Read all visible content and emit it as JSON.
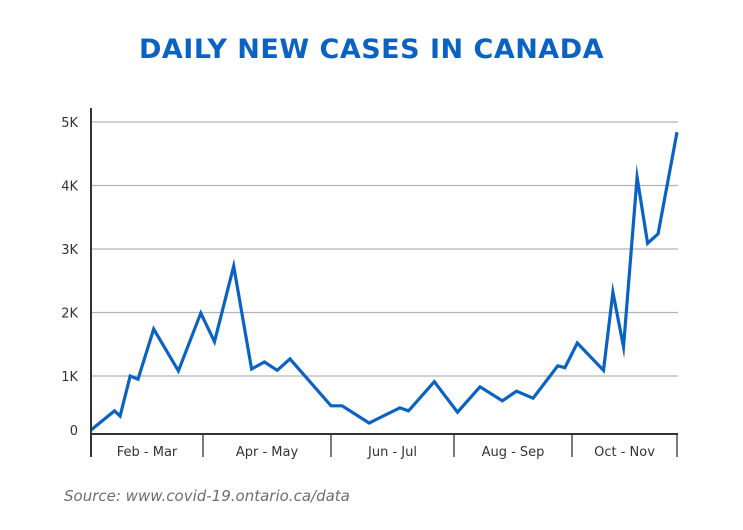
{
  "chart_data": {
    "type": "line",
    "title": "DAILY NEW CASES IN CANADA",
    "xlabel": "",
    "ylabel": "",
    "ylim": [
      0,
      5000
    ],
    "xlim": [
      0,
      5
    ],
    "grid": true,
    "legend": "none",
    "yticks": [
      {
        "value": 0,
        "label": "0"
      },
      {
        "value": 1000,
        "label": "1K"
      },
      {
        "value": 2000,
        "label": "2K"
      },
      {
        "value": 3000,
        "label": "3K"
      },
      {
        "value": 4000,
        "label": "4K"
      },
      {
        "value": 5000,
        "label": "5K"
      }
    ],
    "categories": [
      "Feb - Mar",
      "Apr - May",
      "Jun - Jul",
      "Aug - Sep",
      "Oct - Nov"
    ],
    "series": [
      {
        "name": "Daily new cases",
        "color": "#0a63c2",
        "x": [
          0.0,
          0.21,
          0.26,
          0.35,
          0.42,
          0.56,
          0.78,
          0.98,
          1.09,
          1.24,
          1.38,
          1.48,
          1.58,
          1.68,
          2.0,
          2.09,
          2.31,
          2.56,
          2.63,
          2.84,
          3.03,
          3.22,
          3.41,
          3.53,
          3.67,
          3.88,
          3.94,
          4.05,
          4.3,
          4.39,
          4.49,
          4.62,
          4.72,
          4.82,
          5.0
        ],
        "values": [
          150,
          450,
          370,
          1000,
          950,
          1740,
          1080,
          1990,
          1540,
          2730,
          1110,
          1220,
          1090,
          1270,
          530,
          530,
          260,
          500,
          450,
          910,
          430,
          830,
          610,
          760,
          650,
          1160,
          1130,
          1520,
          1090,
          2320,
          1460,
          4130,
          3090,
          3240,
          4840
        ]
      }
    ],
    "source": "Source: www.covid-19.ontario.ca/data"
  }
}
